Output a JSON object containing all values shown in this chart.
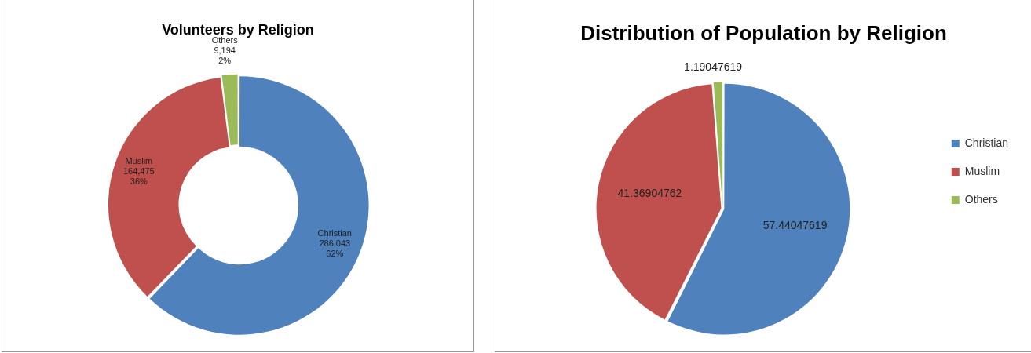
{
  "chart_data": [
    {
      "type": "donut",
      "title": "Volunteers by Religion",
      "categories": [
        "Christian",
        "Muslim",
        "Others"
      ],
      "values": [
        286043,
        164475,
        9194
      ],
      "colors": [
        "#4f81bd",
        "#c0504d",
        "#9bbb59"
      ],
      "value_labels": [
        "286,043\n62%",
        "164,475\n36%",
        "9,194\n2%"
      ],
      "legend": false
    },
    {
      "type": "pie",
      "title": "Distribution of Population by Religion",
      "categories": [
        "Christian",
        "Muslim",
        "Others"
      ],
      "values": [
        57.44047619,
        41.36904762,
        1.19047619
      ],
      "colors": [
        "#4f81bd",
        "#c0504d",
        "#9bbb59"
      ],
      "data_labels": true,
      "legend": "right"
    }
  ]
}
